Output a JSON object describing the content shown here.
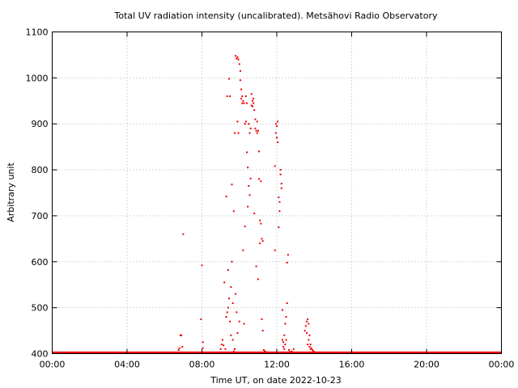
{
  "chart_data": {
    "type": "scatter",
    "title": "Total UV radiation intensity (uncalibrated). Metsähovi Radio Observatory",
    "xlabel": "Time UT, on date 2022-10-23",
    "ylabel": "Arbitrary unit",
    "xlim": [
      0,
      24
    ],
    "ylim": [
      400,
      1100
    ],
    "x_ticks": [
      {
        "value": 0,
        "label": "00:00"
      },
      {
        "value": 4,
        "label": "04:00"
      },
      {
        "value": 8,
        "label": "08:00"
      },
      {
        "value": 12,
        "label": "12:00"
      },
      {
        "value": 16,
        "label": "16:00"
      },
      {
        "value": 20,
        "label": "20:00"
      },
      {
        "value": 24,
        "label": "00:00"
      }
    ],
    "y_ticks": [
      {
        "value": 400,
        "label": "400"
      },
      {
        "value": 500,
        "label": "500"
      },
      {
        "value": 600,
        "label": "600"
      },
      {
        "value": 700,
        "label": "700"
      },
      {
        "value": 800,
        "label": "800"
      },
      {
        "value": 900,
        "label": "900"
      },
      {
        "value": 1000,
        "label": "1000"
      },
      {
        "value": 1100,
        "label": "1100"
      }
    ],
    "grid": true,
    "marker_color": "#ee0000",
    "baseline": {
      "value": 402,
      "x_start": 0,
      "x_end": 24
    },
    "points": [
      [
        6.75,
        408
      ],
      [
        6.8,
        412
      ],
      [
        6.85,
        440
      ],
      [
        6.9,
        440
      ],
      [
        6.95,
        415
      ],
      [
        7.0,
        660
      ],
      [
        7.95,
        475
      ],
      [
        8.0,
        592
      ],
      [
        8.05,
        425
      ],
      [
        8.05,
        412
      ],
      [
        9.0,
        410
      ],
      [
        9.05,
        420
      ],
      [
        9.1,
        430
      ],
      [
        9.15,
        418
      ],
      [
        9.2,
        555
      ],
      [
        9.25,
        410
      ],
      [
        9.3,
        480
      ],
      [
        9.3,
        742
      ],
      [
        9.35,
        490
      ],
      [
        9.35,
        960
      ],
      [
        9.4,
        500
      ],
      [
        9.4,
        582
      ],
      [
        9.45,
        520
      ],
      [
        9.45,
        998
      ],
      [
        9.5,
        470
      ],
      [
        9.5,
        960
      ],
      [
        9.55,
        440
      ],
      [
        9.55,
        545
      ],
      [
        9.6,
        600
      ],
      [
        9.6,
        768
      ],
      [
        9.65,
        430
      ],
      [
        9.65,
        510
      ],
      [
        9.7,
        405
      ],
      [
        9.7,
        710
      ],
      [
        9.75,
        410
      ],
      [
        9.75,
        880
      ],
      [
        9.8,
        530
      ],
      [
        9.8,
        1048
      ],
      [
        9.85,
        490
      ],
      [
        9.85,
        1042
      ],
      [
        9.9,
        445
      ],
      [
        9.9,
        1045
      ],
      [
        9.9,
        905
      ],
      [
        9.95,
        1040
      ],
      [
        9.95,
        880
      ],
      [
        10.0,
        1030
      ],
      [
        10.0,
        470
      ],
      [
        10.05,
        1015
      ],
      [
        10.05,
        995
      ],
      [
        10.1,
        975
      ],
      [
        10.1,
        955
      ],
      [
        10.15,
        945
      ],
      [
        10.15,
        960
      ],
      [
        10.2,
        950
      ],
      [
        10.2,
        625
      ],
      [
        10.25,
        945
      ],
      [
        10.25,
        465
      ],
      [
        10.3,
        900
      ],
      [
        10.3,
        677
      ],
      [
        10.35,
        960
      ],
      [
        10.35,
        905
      ],
      [
        10.4,
        945
      ],
      [
        10.4,
        838
      ],
      [
        10.45,
        805
      ],
      [
        10.45,
        720
      ],
      [
        10.5,
        765
      ],
      [
        10.5,
        900
      ],
      [
        10.55,
        745
      ],
      [
        10.55,
        880
      ],
      [
        10.6,
        890
      ],
      [
        10.6,
        781
      ],
      [
        10.65,
        940
      ],
      [
        10.65,
        965
      ],
      [
        10.7,
        950
      ],
      [
        10.7,
        938
      ],
      [
        10.75,
        945
      ],
      [
        10.75,
        955
      ],
      [
        10.8,
        930
      ],
      [
        10.8,
        705
      ],
      [
        10.85,
        890
      ],
      [
        10.85,
        910
      ],
      [
        10.9,
        885
      ],
      [
        10.9,
        590
      ],
      [
        10.95,
        880
      ],
      [
        10.95,
        905
      ],
      [
        11.0,
        885
      ],
      [
        11.0,
        562
      ],
      [
        11.05,
        780
      ],
      [
        11.05,
        840
      ],
      [
        11.1,
        690
      ],
      [
        11.1,
        640
      ],
      [
        11.15,
        683
      ],
      [
        11.15,
        775
      ],
      [
        11.2,
        650
      ],
      [
        11.2,
        475
      ],
      [
        11.25,
        645
      ],
      [
        11.25,
        450
      ],
      [
        11.3,
        408
      ],
      [
        11.35,
        405
      ],
      [
        11.4,
        404
      ],
      [
        11.9,
        808
      ],
      [
        11.9,
        625
      ],
      [
        11.95,
        900
      ],
      [
        11.95,
        880
      ],
      [
        12.0,
        895
      ],
      [
        12.0,
        870
      ],
      [
        12.05,
        905
      ],
      [
        12.05,
        860
      ],
      [
        12.1,
        740
      ],
      [
        12.1,
        675
      ],
      [
        12.15,
        730
      ],
      [
        12.15,
        710
      ],
      [
        12.2,
        800
      ],
      [
        12.2,
        790
      ],
      [
        12.25,
        760
      ],
      [
        12.25,
        770
      ],
      [
        12.3,
        495
      ],
      [
        12.3,
        430
      ],
      [
        12.35,
        415
      ],
      [
        12.35,
        425
      ],
      [
        12.4,
        410
      ],
      [
        12.4,
        440
      ],
      [
        12.45,
        420
      ],
      [
        12.45,
        465
      ],
      [
        12.5,
        430
      ],
      [
        12.5,
        480
      ],
      [
        12.55,
        510
      ],
      [
        12.55,
        598
      ],
      [
        12.6,
        615
      ],
      [
        12.65,
        408
      ],
      [
        12.7,
        404
      ],
      [
        12.8,
        405
      ],
      [
        12.9,
        410
      ],
      [
        13.5,
        450
      ],
      [
        13.55,
        460
      ],
      [
        13.6,
        470
      ],
      [
        13.6,
        445
      ],
      [
        13.65,
        475
      ],
      [
        13.65,
        420
      ],
      [
        13.7,
        465
      ],
      [
        13.7,
        430
      ],
      [
        13.75,
        440
      ],
      [
        13.75,
        415
      ],
      [
        13.8,
        420
      ],
      [
        13.8,
        410
      ],
      [
        13.85,
        412
      ],
      [
        13.9,
        408
      ],
      [
        13.95,
        405
      ],
      [
        14.0,
        404
      ]
    ]
  }
}
